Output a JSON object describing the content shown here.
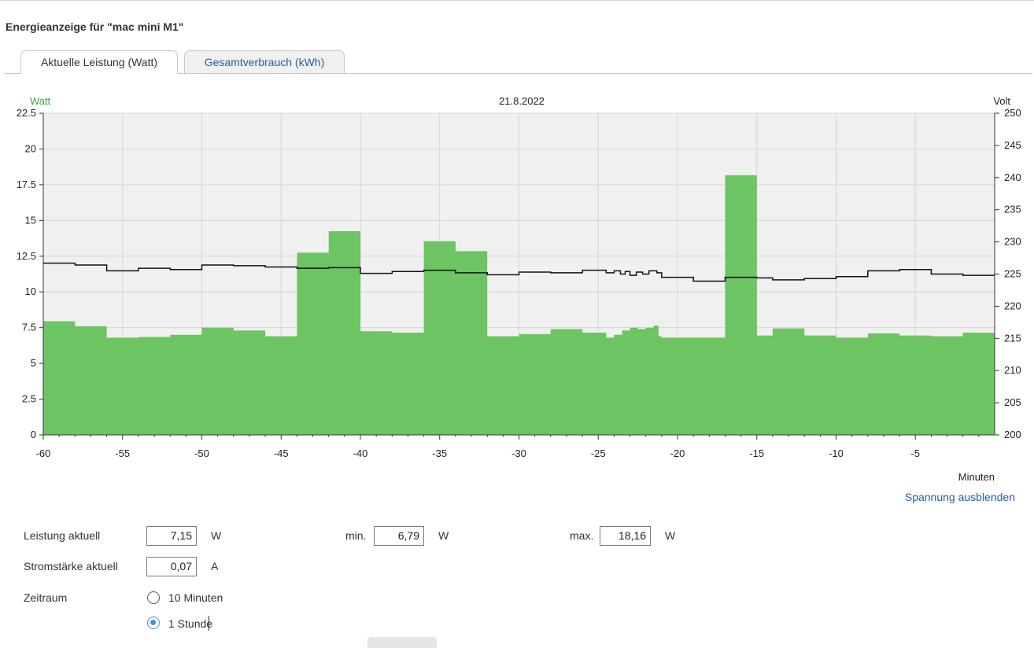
{
  "page_title": "Energieanzeige für \"mac mini M1\"",
  "tabs": [
    {
      "label": "Aktuelle Leistung (Watt)",
      "active": true
    },
    {
      "label": "Gesamtverbrauch (kWh)",
      "active": false
    }
  ],
  "colors": {
    "power_fill": "#6cc462",
    "voltage_line": "#111111",
    "plot_bg": "#f0f0f0",
    "link": "#2a5d9a",
    "watt_label": "#3aa93a"
  },
  "chart_data": {
    "type": "area",
    "date": "21.8.2022",
    "y_left_label": "Watt",
    "y_right_label": "Volt",
    "x_label": "Minuten",
    "x_range": [
      -60,
      0
    ],
    "x_ticks": [
      -60,
      -55,
      -50,
      -45,
      -40,
      -35,
      -30,
      -25,
      -20,
      -15,
      -10,
      -5
    ],
    "y_left_range": [
      0,
      22.5
    ],
    "y_left_ticks": [
      "0",
      "2.5",
      "5",
      "7.5",
      "10",
      "12.5",
      "15",
      "17.5",
      "20",
      "22.5"
    ],
    "y_right_range": [
      200,
      250
    ],
    "y_right_ticks": [
      "200",
      "205",
      "210",
      "215",
      "220",
      "225",
      "230",
      "235",
      "240",
      "245",
      "250"
    ],
    "grid": true,
    "series": [
      {
        "name": "Watt",
        "kind": "step-area",
        "points": [
          [
            -60,
            7.95
          ],
          [
            -58,
            7.6
          ],
          [
            -56,
            6.8
          ],
          [
            -54,
            6.85
          ],
          [
            -52,
            7.0
          ],
          [
            -50,
            7.5
          ],
          [
            -48,
            7.3
          ],
          [
            -46,
            6.9
          ],
          [
            -44,
            12.75
          ],
          [
            -42,
            14.25
          ],
          [
            -40,
            7.25
          ],
          [
            -38,
            7.15
          ],
          [
            -36,
            13.55
          ],
          [
            -34,
            12.85
          ],
          [
            -32,
            6.9
          ],
          [
            -30,
            7.05
          ],
          [
            -28,
            7.4
          ],
          [
            -26,
            7.15
          ],
          [
            -24.5,
            6.8
          ],
          [
            -24,
            7.0
          ],
          [
            -23.5,
            7.3
          ],
          [
            -23,
            7.5
          ],
          [
            -22.5,
            7.4
          ],
          [
            -22,
            7.5
          ],
          [
            -21.5,
            7.65
          ],
          [
            -21.2,
            6.9
          ],
          [
            -21,
            6.8
          ],
          [
            -19,
            6.8
          ],
          [
            -17,
            18.16
          ],
          [
            -15,
            6.95
          ],
          [
            -14,
            7.45
          ],
          [
            -12,
            6.95
          ],
          [
            -10,
            6.8
          ],
          [
            -8,
            7.1
          ],
          [
            -6,
            6.95
          ],
          [
            -4,
            6.9
          ],
          [
            -2,
            7.15
          ],
          [
            0,
            7.15
          ]
        ]
      },
      {
        "name": "Volt",
        "kind": "step-line",
        "points": [
          [
            -60,
            226.7
          ],
          [
            -58,
            226.4
          ],
          [
            -56,
            225.5
          ],
          [
            -54,
            225.9
          ],
          [
            -52,
            225.7
          ],
          [
            -50,
            226.4
          ],
          [
            -48,
            226.3
          ],
          [
            -46,
            226.1
          ],
          [
            -44,
            225.9
          ],
          [
            -42,
            226.0
          ],
          [
            -40,
            225.1
          ],
          [
            -38,
            225.4
          ],
          [
            -36,
            225.6
          ],
          [
            -34,
            225.2
          ],
          [
            -32,
            224.9
          ],
          [
            -30,
            225.3
          ],
          [
            -28,
            225.2
          ],
          [
            -26,
            225.6
          ],
          [
            -24.5,
            225.2
          ],
          [
            -24,
            225.5
          ],
          [
            -23.6,
            225.0
          ],
          [
            -23.3,
            225.4
          ],
          [
            -23,
            224.8
          ],
          [
            -22.6,
            225.3
          ],
          [
            -22.2,
            225.0
          ],
          [
            -21.8,
            225.5
          ],
          [
            -21.3,
            225.2
          ],
          [
            -21,
            224.5
          ],
          [
            -19,
            223.9
          ],
          [
            -17,
            224.5
          ],
          [
            -15,
            224.4
          ],
          [
            -14,
            224.1
          ],
          [
            -12,
            224.3
          ],
          [
            -10,
            224.6
          ],
          [
            -8,
            225.5
          ],
          [
            -6,
            225.7
          ],
          [
            -4,
            225.0
          ],
          [
            -2,
            224.8
          ],
          [
            0,
            224.8
          ]
        ]
      }
    ]
  },
  "toggle_voltage_link": "Spannung ausblenden",
  "readings": {
    "power_label": "Leistung aktuell",
    "power_value": "7,15",
    "power_unit": "W",
    "min_label": "min.",
    "min_value": "6,79",
    "min_unit": "W",
    "max_label": "max.",
    "max_value": "18,16",
    "max_unit": "W",
    "current_label": "Stromstärke aktuell",
    "current_value": "0,07",
    "current_unit": "A"
  },
  "period": {
    "label": "Zeitraum",
    "options": [
      {
        "label": "10 Minuten",
        "checked": false
      },
      {
        "label": "1 Stunde",
        "checked": true
      }
    ]
  }
}
